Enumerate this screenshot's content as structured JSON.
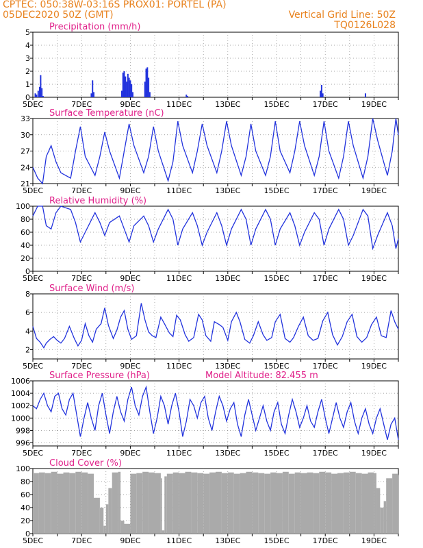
{
  "header": {
    "line1_left": "CPTEC:   050:38W-03:16S   PROX01: PORTEL (PA)",
    "line2_left": "05DEC2020 50Z (GMT)",
    "line2_right": "Vertical Grid Line: 50Z",
    "line3_right": "TQ0126L028"
  },
  "colors": {
    "header": "#e8821e",
    "title": "#e0218a",
    "series": "#2233dd",
    "cloud": "#aaaaaa"
  },
  "x_tick_labels": [
    "5DEC",
    "7DEC",
    "9DEC",
    "11DEC",
    "13DEC",
    "15DEC",
    "17DEC",
    "19DEC"
  ],
  "chart_data": [
    {
      "type": "bar",
      "title": "Precipitation (mm/h)",
      "ylim": [
        0,
        5
      ],
      "yticks": [
        0,
        1,
        2,
        3,
        4,
        5
      ],
      "x": [
        0.1,
        0.15,
        0.22,
        0.28,
        0.32,
        0.37,
        0.42,
        2.4,
        2.45,
        2.5,
        3.65,
        3.7,
        3.75,
        3.8,
        3.85,
        3.9,
        3.95,
        4.0,
        4.05,
        4.1,
        4.6,
        4.65,
        4.7,
        4.75,
        4.8,
        6.3,
        6.35,
        11.8,
        11.85,
        11.9,
        13.65
      ],
      "values": [
        0.3,
        0.2,
        0.5,
        0.8,
        1.7,
        0.7,
        0.1,
        0.3,
        1.3,
        0.4,
        0.5,
        1.9,
        2.0,
        1.6,
        1.2,
        1.8,
        1.5,
        1.3,
        1.0,
        0.4,
        1.2,
        2.2,
        2.3,
        1.5,
        0.4,
        0.2,
        0.1,
        0.5,
        0.95,
        0.3,
        0.3
      ]
    },
    {
      "type": "line",
      "title": "Surface Temperature (nC)",
      "ylim": [
        21,
        33
      ],
      "yticks": [
        21,
        24,
        27,
        30,
        33
      ],
      "x": [
        0.0,
        0.2,
        0.4,
        0.55,
        0.75,
        0.95,
        1.15,
        1.55,
        1.75,
        1.95,
        2.15,
        2.55,
        2.75,
        2.95,
        3.15,
        3.55,
        3.75,
        3.95,
        4.15,
        4.55,
        4.75,
        4.95,
        5.15,
        5.55,
        5.75,
        5.95,
        6.15,
        6.55,
        6.75,
        6.95,
        7.15,
        7.55,
        7.75,
        7.95,
        8.15,
        8.55,
        8.75,
        8.95,
        9.15,
        9.55,
        9.75,
        9.95,
        10.15,
        10.55,
        10.75,
        10.95,
        11.15,
        11.55,
        11.75,
        11.95,
        12.15,
        12.55,
        12.75,
        12.95,
        13.15,
        13.55,
        13.75,
        13.95,
        14.15,
        14.55,
        14.75,
        14.9,
        15.0
      ],
      "values": [
        24,
        22,
        21,
        26,
        28,
        25,
        23,
        22,
        27,
        31.5,
        26,
        22.5,
        26,
        30.5,
        27,
        22,
        27,
        32,
        28,
        23,
        26,
        31.5,
        27,
        21.5,
        25,
        32.5,
        28,
        23,
        27,
        32,
        28,
        23,
        27,
        32.5,
        28,
        22.5,
        26,
        32,
        27,
        22.5,
        26,
        32.5,
        27,
        23,
        27,
        32.5,
        28,
        22.5,
        26,
        32.5,
        27,
        22,
        26,
        32.5,
        28,
        22,
        26,
        33,
        29,
        22.5,
        27,
        33,
        30
      ]
    },
    {
      "type": "line",
      "title": "Relative Humidity (%)",
      "ylim": [
        0,
        100
      ],
      "yticks": [
        0,
        20,
        40,
        60,
        80,
        100
      ],
      "x": [
        0.0,
        0.2,
        0.4,
        0.55,
        0.75,
        0.95,
        1.15,
        1.55,
        1.75,
        1.95,
        2.15,
        2.55,
        2.75,
        2.95,
        3.15,
        3.55,
        3.75,
        3.95,
        4.15,
        4.55,
        4.75,
        4.95,
        5.15,
        5.55,
        5.75,
        5.95,
        6.15,
        6.55,
        6.75,
        6.95,
        7.15,
        7.55,
        7.75,
        7.95,
        8.15,
        8.55,
        8.75,
        8.95,
        9.15,
        9.55,
        9.75,
        9.95,
        10.15,
        10.55,
        10.75,
        10.95,
        11.15,
        11.55,
        11.75,
        11.95,
        12.15,
        12.55,
        12.75,
        12.95,
        13.15,
        13.55,
        13.75,
        13.95,
        14.15,
        14.55,
        14.75,
        14.9,
        15.0
      ],
      "values": [
        85,
        100,
        100,
        70,
        65,
        90,
        100,
        95,
        75,
        45,
        60,
        90,
        75,
        55,
        75,
        85,
        65,
        45,
        70,
        85,
        70,
        45,
        65,
        95,
        80,
        40,
        65,
        90,
        70,
        40,
        60,
        90,
        70,
        40,
        65,
        95,
        80,
        40,
        65,
        95,
        80,
        40,
        65,
        90,
        70,
        40,
        60,
        90,
        80,
        40,
        65,
        95,
        80,
        40,
        55,
        95,
        85,
        35,
        55,
        90,
        70,
        35,
        50
      ]
    },
    {
      "type": "line",
      "title": "Surface Wind (m/s)",
      "ylim": [
        1,
        8
      ],
      "yticks": [
        2,
        4,
        6,
        8
      ],
      "x": [
        0.0,
        0.15,
        0.3,
        0.45,
        0.55,
        0.7,
        0.85,
        1.0,
        1.15,
        1.3,
        1.5,
        1.7,
        1.85,
        2.0,
        2.15,
        2.3,
        2.45,
        2.6,
        2.8,
        2.95,
        3.1,
        3.3,
        3.45,
        3.6,
        3.75,
        3.9,
        4.05,
        4.25,
        4.45,
        4.6,
        4.75,
        4.9,
        5.05,
        5.25,
        5.4,
        5.6,
        5.75,
        5.9,
        6.05,
        6.25,
        6.4,
        6.6,
        6.8,
        6.95,
        7.1,
        7.3,
        7.45,
        7.65,
        7.8,
        8.0,
        8.15,
        8.35,
        8.5,
        8.7,
        8.9,
        9.05,
        9.25,
        9.45,
        9.6,
        9.8,
        9.95,
        10.15,
        10.35,
        10.55,
        10.7,
        10.9,
        11.1,
        11.3,
        11.5,
        11.7,
        11.9,
        12.1,
        12.3,
        12.5,
        12.7,
        12.9,
        13.1,
        13.3,
        13.5,
        13.7,
        13.9,
        14.1,
        14.3,
        14.5,
        14.7,
        14.85,
        15.0
      ],
      "values": [
        4.5,
        3.2,
        2.8,
        2.2,
        2.7,
        3.1,
        3.4,
        3.0,
        2.7,
        3.2,
        4.5,
        3.2,
        2.4,
        3.0,
        4.8,
        3.5,
        2.8,
        4.2,
        4.8,
        6.5,
        4.6,
        3.2,
        4.1,
        5.5,
        6.2,
        4.2,
        3.1,
        3.5,
        7.0,
        5.2,
        3.9,
        3.5,
        3.3,
        5.5,
        4.8,
        3.8,
        3.4,
        5.7,
        5.2,
        3.6,
        2.9,
        3.3,
        5.8,
        5.2,
        3.5,
        2.9,
        5.0,
        4.7,
        4.4,
        3.0,
        5.0,
        6.0,
        5.0,
        3.1,
        2.7,
        3.5,
        5.0,
        3.6,
        3.0,
        3.3,
        5.0,
        5.8,
        3.2,
        2.8,
        3.3,
        4.5,
        5.5,
        3.5,
        3.0,
        3.2,
        5.1,
        6.0,
        3.6,
        2.5,
        3.4,
        5.0,
        5.8,
        3.4,
        2.8,
        3.3,
        4.7,
        5.5,
        3.5,
        3.3,
        6.2,
        5.0,
        4.2
      ]
    },
    {
      "type": "line",
      "title": "Surface Pressure (hPa)",
      "subtitle": "Model Altitude: 82.455 m",
      "ylim": [
        995.5,
        1006
      ],
      "yticks": [
        996,
        998,
        1000,
        1002,
        1004,
        1006
      ],
      "x": [
        0.0,
        0.15,
        0.3,
        0.45,
        0.6,
        0.75,
        0.9,
        1.05,
        1.2,
        1.35,
        1.5,
        1.65,
        1.8,
        1.95,
        2.1,
        2.25,
        2.4,
        2.55,
        2.7,
        2.85,
        3.0,
        3.15,
        3.3,
        3.45,
        3.6,
        3.75,
        3.9,
        4.05,
        4.2,
        4.35,
        4.5,
        4.65,
        4.8,
        4.95,
        5.1,
        5.25,
        5.4,
        5.55,
        5.7,
        5.85,
        6.0,
        6.15,
        6.3,
        6.45,
        6.6,
        6.75,
        6.9,
        7.05,
        7.2,
        7.35,
        7.5,
        7.65,
        7.8,
        7.95,
        8.1,
        8.25,
        8.4,
        8.55,
        8.7,
        8.85,
        9.0,
        9.15,
        9.3,
        9.45,
        9.6,
        9.75,
        9.9,
        10.05,
        10.2,
        10.35,
        10.5,
        10.65,
        10.8,
        10.95,
        11.1,
        11.25,
        11.4,
        11.55,
        11.7,
        11.85,
        12.0,
        12.15,
        12.3,
        12.45,
        12.6,
        12.75,
        12.9,
        13.05,
        13.2,
        13.35,
        13.5,
        13.65,
        13.8,
        13.95,
        14.1,
        14.25,
        14.4,
        14.55,
        14.7,
        14.85,
        15.0
      ],
      "values": [
        1002.0,
        1001.5,
        1003.0,
        1004.0,
        1002.0,
        1001.0,
        1003.5,
        1004.0,
        1001.5,
        1000.5,
        1003.0,
        1004.0,
        1000.5,
        997.0,
        1000.0,
        1002.5,
        1000.0,
        998.0,
        1002.0,
        1004.0,
        1000.5,
        997.5,
        1001.0,
        1003.5,
        1001.0,
        999.5,
        1003.0,
        1005.0,
        1002.0,
        1000.5,
        1003.5,
        1005.0,
        1001.0,
        997.5,
        1000.0,
        1003.5,
        1002.0,
        999.0,
        1002.0,
        1004.0,
        1001.0,
        997.0,
        999.5,
        1003.0,
        1002.0,
        1000.0,
        1002.5,
        1003.5,
        1000.0,
        998.0,
        1001.0,
        1003.5,
        1002.0,
        999.5,
        1001.5,
        1002.5,
        999.0,
        997.0,
        1000.5,
        1003.0,
        1000.5,
        998.0,
        1000.0,
        1002.0,
        999.5,
        998.0,
        1001.0,
        1002.5,
        999.0,
        997.5,
        1000.5,
        1003.0,
        1001.0,
        998.5,
        1000.0,
        1002.0,
        999.5,
        998.5,
        1001.0,
        1003.0,
        1000.0,
        997.5,
        1000.0,
        1002.5,
        1000.0,
        998.5,
        1001.0,
        1002.5,
        999.5,
        997.5,
        1000.0,
        1001.5,
        999.0,
        997.5,
        1000.0,
        1001.5,
        999.0,
        996.5,
        999.0,
        1000.0,
        996.5
      ]
    },
    {
      "type": "bar",
      "title": "Cloud Cover (%)",
      "ylim": [
        0,
        100
      ],
      "yticks": [
        0,
        20,
        40,
        60,
        80,
        100
      ],
      "x": [
        0.0,
        0.25,
        0.5,
        0.75,
        1.0,
        1.25,
        1.5,
        1.75,
        2.0,
        2.25,
        2.5,
        2.75,
        2.9,
        3.0,
        3.1,
        3.25,
        3.5,
        3.6,
        3.75,
        4.0,
        4.25,
        4.5,
        4.75,
        5.0,
        5.25,
        5.3,
        5.4,
        5.5,
        5.75,
        6.0,
        6.25,
        6.5,
        6.75,
        7.0,
        7.25,
        7.5,
        7.75,
        8.0,
        8.25,
        8.5,
        8.75,
        9.0,
        9.25,
        9.5,
        9.75,
        10.0,
        10.25,
        10.5,
        10.75,
        11.0,
        11.25,
        11.5,
        11.75,
        12.0,
        12.25,
        12.5,
        12.75,
        13.0,
        13.25,
        13.5,
        13.75,
        14.0,
        14.1,
        14.25,
        14.4,
        14.5,
        14.75,
        15.0
      ],
      "values": [
        93,
        94,
        93,
        95,
        92,
        94,
        93,
        95,
        94,
        92,
        55,
        40,
        12,
        45,
        70,
        94,
        95,
        20,
        15,
        92,
        93,
        95,
        94,
        93,
        85,
        5,
        88,
        92,
        94,
        93,
        95,
        94,
        93,
        92,
        94,
        95,
        93,
        94,
        92,
        93,
        95,
        94,
        93,
        92,
        94,
        93,
        95,
        92,
        94,
        93,
        94,
        93,
        95,
        94,
        92,
        93,
        94,
        95,
        93,
        92,
        94,
        93,
        70,
        40,
        50,
        85,
        92,
        90
      ]
    }
  ]
}
